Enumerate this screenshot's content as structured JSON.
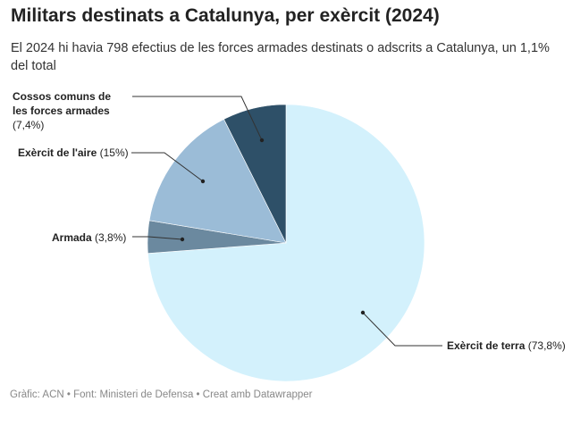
{
  "title": "Militars destinats a Catalunya, per exèrcit (2024)",
  "subtitle": "El 2024 hi havia 798 efectius de les forces armades destinats o adscrits a Catalunya, un 1,1% del total",
  "footer": "Gràfic: ACN • Font: Ministeri de Defensa • Creat amb Datawrapper",
  "chart_data": {
    "type": "pie",
    "title": "Militars destinats a Catalunya, per exèrcit (2024)",
    "unit": "%",
    "slices": [
      {
        "name": "Exèrcit de terra",
        "value": 73.8,
        "label": "(73,8%)",
        "color": "#d3f1fc"
      },
      {
        "name": "Armada",
        "value": 3.8,
        "label": "(3,8%)",
        "color": "#6b899f"
      },
      {
        "name": "Exèrcit de l'aire",
        "value": 15,
        "label": "(15%)",
        "color": "#9bbcd7"
      },
      {
        "name": "Cossos comuns de les forces armades",
        "value": 7.4,
        "label": "(7,4%)",
        "color": "#2e5068"
      }
    ]
  }
}
